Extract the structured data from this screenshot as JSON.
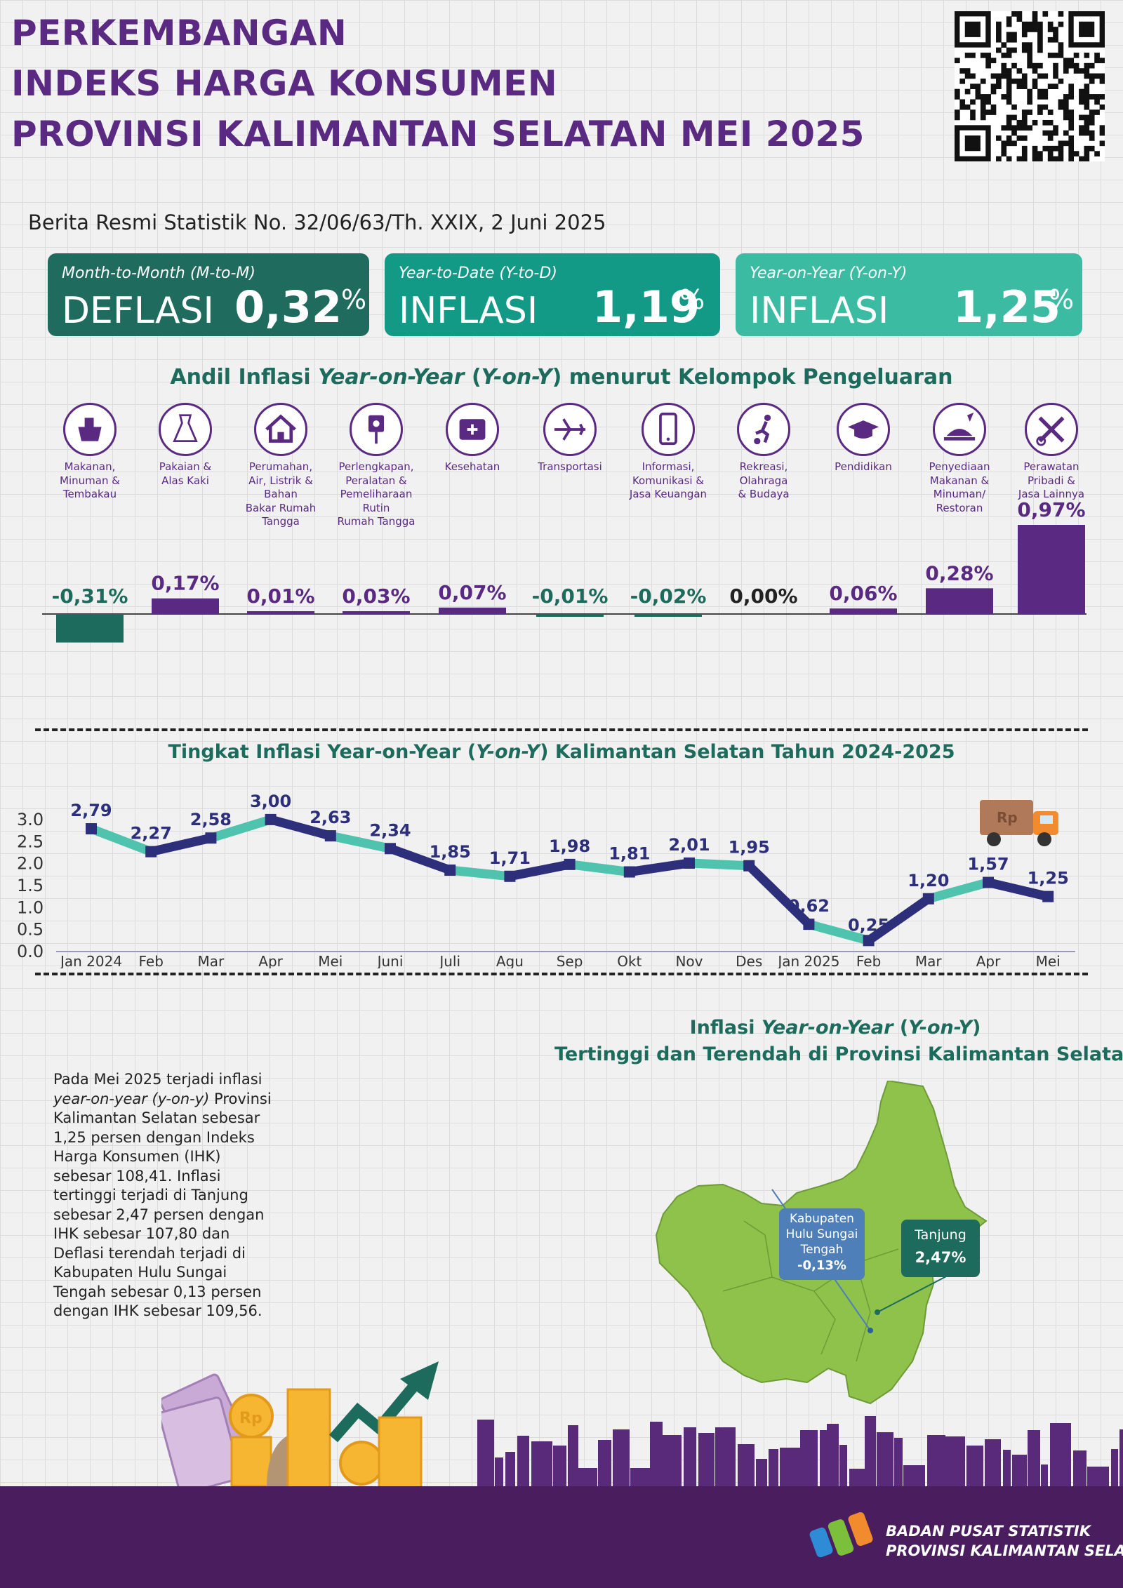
{
  "header": {
    "title_lines": [
      "PERKEMBANGAN",
      "INDEKS HARGA KONSUMEN",
      "PROVINSI KALIMANTAN SELATAN MEI 2025"
    ],
    "subtitle": "Berita Resmi Statistik No. 32/06/63/Th. XXIX, 2 Juni 2025"
  },
  "summary": {
    "mtm": {
      "label": "Month-to-Month (M-to-M)",
      "kind": "DEFLASI",
      "value": "0,32",
      "unit": "%"
    },
    "ytd": {
      "label": "Year-to-Date (Y-to-D)",
      "kind": "INFLASI",
      "value": "1,19",
      "unit": "%"
    },
    "yoy": {
      "label": "Year-on-Year (Y-on-Y)",
      "kind": "INFLASI",
      "value": "1,25",
      "unit": "%"
    }
  },
  "colors": {
    "purple": "#5a2a82",
    "dark_green": "#1c6b5c",
    "teal": "#159e8a",
    "light_teal": "#3bbfa5",
    "navy": "#2d2f7a",
    "line_teal": "#4fc3ad",
    "map_green": "#8fc24a",
    "callout_blue": "#4f7fb8",
    "footer": "#4a1d5e"
  },
  "andil_chart": {
    "title_parts": [
      "Andil Inflasi ",
      "Year-on-Year",
      " (",
      "Y-on-Y",
      ") menurut Kelompok Pengeluaran"
    ]
  },
  "line_chart": {
    "title_parts": [
      "Tingkat Inflasi Year-on-Year (",
      "Y-on-Y",
      ") Kalimantan Selatan Tahun 2024-2025"
    ]
  },
  "chart_data": [
    {
      "type": "bar",
      "title": "Andil Inflasi Year-on-Year (Y-on-Y) menurut Kelompok Pengeluaran",
      "categories": [
        "Makanan, Minuman & Tembakau",
        "Pakaian & Alas Kaki",
        "Perumahan, Air, Listrik & Bahan Bakar Rumah Tangga",
        "Perlengkapan, Peralatan & Pemeliharaan Rutin Rumah Tangga",
        "Kesehatan",
        "Transportasi",
        "Informasi, Komunikasi & Jasa Keuangan",
        "Rekreasi, Olahraga & Budaya",
        "Pendidikan",
        "Penyediaan Makanan & Minuman/ Restoran",
        "Perawatan Pribadi & Jasa Lainnya"
      ],
      "label_lines": [
        [
          "Makanan,",
          "Minuman &",
          "Tembakau"
        ],
        [
          "Pakaian &",
          "Alas Kaki"
        ],
        [
          "Perumahan,",
          "Air, Listrik &",
          "Bahan",
          "Bakar Rumah",
          "Tangga"
        ],
        [
          "Perlengkapan,",
          "Peralatan &",
          "Pemeliharaan",
          "Rutin",
          "Rumah Tangga"
        ],
        [
          "Kesehatan"
        ],
        [
          "Transportasi"
        ],
        [
          "Informasi,",
          "Komunikasi &",
          "Jasa Keuangan"
        ],
        [
          "Rekreasi,",
          "Olahraga",
          "& Budaya"
        ],
        [
          "Pendidikan"
        ],
        [
          "Penyediaan",
          "Makanan &",
          "Minuman/",
          "Restoran"
        ],
        [
          "Perawatan",
          "Pribadi &",
          "Jasa Lainnya"
        ]
      ],
      "icons": [
        "food-basket-icon",
        "dress-icon",
        "house-icon",
        "plug-icon",
        "first-aid-kit-icon",
        "airplane-icon",
        "smartphone-icon",
        "soccer-player-icon",
        "graduation-cap-icon",
        "food-tray-icon",
        "scissors-comb-icon"
      ],
      "values": [
        -0.31,
        0.17,
        0.01,
        0.03,
        0.07,
        -0.01,
        -0.02,
        0.0,
        0.06,
        0.28,
        0.97
      ],
      "value_labels": [
        "-0,31%",
        "0,17%",
        "0,01%",
        "0,03%",
        "0,07%",
        "-0,01%",
        "-0,02%",
        "0,00%",
        "0,06%",
        "0,28%",
        "0,97%"
      ],
      "ylabel": "",
      "xlabel": ""
    },
    {
      "type": "line",
      "title": "Tingkat Inflasi Year-on-Year (Y-on-Y) Kalimantan Selatan Tahun 2024-2025",
      "categories": [
        "Jan 2024",
        "Feb",
        "Mar",
        "Apr",
        "Mei",
        "Juni",
        "Juli",
        "Agu",
        "Sep",
        "Okt",
        "Nov",
        "Des",
        "Jan 2025",
        "Feb",
        "Mar",
        "Apr",
        "Mei"
      ],
      "values": [
        2.79,
        2.27,
        2.58,
        3.0,
        2.63,
        2.34,
        1.85,
        1.71,
        1.98,
        1.81,
        2.01,
        1.95,
        0.62,
        0.25,
        1.2,
        1.57,
        1.25
      ],
      "value_labels": [
        "2,79",
        "2,27",
        "2,58",
        "3,00",
        "2,63",
        "2,34",
        "1,85",
        "1,71",
        "1,98",
        "1,81",
        "2,01",
        "1,95",
        "0,62",
        "0,25",
        "1,20",
        "1,57",
        "1,25"
      ],
      "yticks": [
        "3.0",
        "2.5",
        "2.0",
        "1.5",
        "1.0",
        "0.5",
        "0.0"
      ],
      "ylim": [
        0,
        3.0
      ],
      "xlabel": "",
      "ylabel": ""
    }
  ],
  "map_section": {
    "title_line1_parts": [
      "Inflasi ",
      "Year-on-Year",
      " (",
      "Y-on-Y",
      ")"
    ],
    "title_line2": "Tertinggi dan Terendah di Provinsi Kalimantan Selatan",
    "lowest": {
      "lines": [
        "Kabupaten",
        "Hulu Sungai",
        "Tengah"
      ],
      "value": "-0,13%"
    },
    "highest": {
      "name": "Tanjung",
      "value": "2,47%"
    }
  },
  "paragraph": {
    "p1": "Pada Mei 2025 terjadi inflasi ",
    "p1_italic": "year-on-year (y-on-y)",
    "p2": " Provinsi Kalimantan Selatan sebesar 1,25 persen dengan Indeks Harga Konsumen (IHK) sebesar 108,41. Inflasi tertinggi terjadi di Tanjung sebesar 2,47 persen dengan IHK sebesar 107,80 dan Deflasi terendah terjadi di Kabupaten Hulu Sungai Tengah sebesar 0,13 persen dengan IHK sebesar 109,56."
  },
  "decor": {
    "truck_label": "Rp",
    "coin_label": "Rp"
  },
  "footer": {
    "org_line1": "BADAN PUSAT STATISTIK",
    "org_line2": "PROVINSI KALIMANTAN SELATAN"
  }
}
